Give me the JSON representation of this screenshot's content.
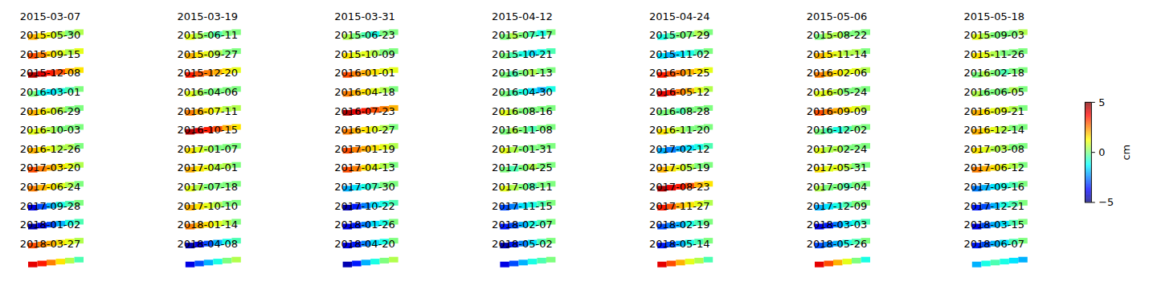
{
  "chart_data": {
    "type": "heatmap",
    "panels": [
      {
        "title": "2015-03-07",
        "cells": [
          2,
          1.5,
          1,
          0.5,
          0,
          0.5
        ]
      },
      {
        "title": "2015-03-19",
        "cells": [
          1,
          0.5,
          0,
          -0.5,
          0,
          0
        ]
      },
      {
        "title": "2015-03-31",
        "cells": [
          0.5,
          0,
          -0.5,
          -1,
          0,
          0
        ]
      },
      {
        "title": "2015-04-12",
        "cells": [
          0,
          0.5,
          0,
          -0.5,
          -1,
          0
        ]
      },
      {
        "title": "2015-04-24",
        "cells": [
          -1,
          -0.5,
          0,
          0,
          0.5,
          0
        ]
      },
      {
        "title": "2015-05-06",
        "cells": [
          0,
          0.5,
          0.5,
          0,
          0,
          0
        ]
      },
      {
        "title": "2015-05-18",
        "cells": [
          1,
          0.5,
          0,
          0,
          0,
          0.5
        ]
      },
      {
        "title": "2015-05-30",
        "cells": [
          3,
          2.5,
          1.5,
          1,
          0.5,
          1
        ]
      },
      {
        "title": "2015-06-11",
        "cells": [
          2,
          1.5,
          1,
          0.5,
          0,
          0
        ]
      },
      {
        "title": "2015-06-23",
        "cells": [
          1.5,
          1,
          1,
          0.5,
          0,
          0
        ]
      },
      {
        "title": "2015-07-17",
        "cells": [
          0,
          -0.5,
          -1,
          -1.5,
          -1,
          -0.5
        ]
      },
      {
        "title": "2015-07-29",
        "cells": [
          -1.5,
          -2,
          -1.5,
          -1,
          -0.5,
          0
        ]
      },
      {
        "title": "2015-08-22",
        "cells": [
          2,
          1.5,
          1,
          0.5,
          0.5,
          0
        ]
      },
      {
        "title": "2015-09-03",
        "cells": [
          1.5,
          1,
          0.5,
          0,
          0,
          0
        ]
      },
      {
        "title": "2015-09-15",
        "cells": [
          4.5,
          4,
          3.5,
          3,
          2,
          1.5
        ]
      },
      {
        "title": "2015-09-27",
        "cells": [
          3.5,
          3,
          2.5,
          2,
          1.5,
          1
        ]
      },
      {
        "title": "2015-10-09",
        "cells": [
          3,
          2.5,
          2,
          1.5,
          1,
          1
        ]
      },
      {
        "title": "2015-10-21",
        "cells": [
          0,
          -0.5,
          0,
          0.5,
          0,
          0
        ]
      },
      {
        "title": "2015-11-02",
        "cells": [
          3.5,
          3,
          2.5,
          2,
          1.5,
          1
        ]
      },
      {
        "title": "2015-11-14",
        "cells": [
          2.5,
          2,
          1.5,
          1,
          1,
          0.5
        ]
      },
      {
        "title": "2015-11-26",
        "cells": [
          0,
          0.5,
          0,
          -0.5,
          0,
          0
        ]
      },
      {
        "title": "2015-12-08",
        "cells": [
          0,
          -1,
          -1.5,
          -1,
          -0.5,
          0
        ]
      },
      {
        "title": "2015-12-20",
        "cells": [
          1,
          0.5,
          0,
          0,
          0,
          0
        ]
      },
      {
        "title": "2016-01-01",
        "cells": [
          2.5,
          2,
          1.5,
          1,
          0.5,
          0
        ]
      },
      {
        "title": "2016-01-13",
        "cells": [
          0,
          -0.5,
          -1,
          -1.5,
          -2,
          -1
        ]
      },
      {
        "title": "2016-01-25",
        "cells": [
          4,
          3.5,
          2.5,
          2,
          1,
          0.5
        ]
      },
      {
        "title": "2016-02-06",
        "cells": [
          1,
          1,
          0.5,
          0,
          0,
          0
        ]
      },
      {
        "title": "2016-02-18",
        "cells": [
          0.5,
          0,
          0,
          0,
          0.5,
          0
        ]
      },
      {
        "title": "2016-03-01",
        "cells": [
          2,
          1.5,
          1,
          0.5,
          0,
          0
        ]
      },
      {
        "title": "2016-04-06",
        "cells": [
          2.5,
          2,
          1.5,
          1,
          0.5,
          0.5
        ]
      },
      {
        "title": "2016-04-18",
        "cells": [
          4.5,
          4,
          3.5,
          3,
          2.5,
          2
        ]
      },
      {
        "title": "2016-04-30",
        "cells": [
          1,
          0.5,
          0,
          0,
          0,
          0
        ]
      },
      {
        "title": "2016-05-12",
        "cells": [
          0,
          0,
          -0.5,
          0,
          0,
          0
        ]
      },
      {
        "title": "2016-05-24",
        "cells": [
          3,
          2.5,
          2,
          1.5,
          1,
          0.5
        ]
      },
      {
        "title": "2016-06-05",
        "cells": [
          2,
          1.5,
          1,
          1,
          0.5,
          0
        ]
      },
      {
        "title": "2016-06-29",
        "cells": [
          1,
          1,
          0.5,
          0,
          0,
          0
        ]
      },
      {
        "title": "2016-07-11",
        "cells": [
          4.5,
          4,
          3.5,
          3,
          2,
          1.5
        ]
      },
      {
        "title": "2016-07-23",
        "cells": [
          2.5,
          2,
          1.5,
          1,
          0.5,
          0
        ]
      },
      {
        "title": "2016-08-16",
        "cells": [
          0,
          0.5,
          0,
          -0.5,
          0,
          0
        ]
      },
      {
        "title": "2016-08-28",
        "cells": [
          1.5,
          1,
          0.5,
          0,
          0,
          0
        ]
      },
      {
        "title": "2016-09-09",
        "cells": [
          0,
          -0.5,
          -1,
          -0.5,
          0,
          0
        ]
      },
      {
        "title": "2016-09-21",
        "cells": [
          2,
          1.5,
          1,
          0.5,
          0,
          0
        ]
      },
      {
        "title": "2016-10-03",
        "cells": [
          2,
          1.5,
          1,
          0.5,
          0.5,
          0
        ]
      },
      {
        "title": "2016-10-15",
        "cells": [
          1.5,
          1,
          0.5,
          0,
          0,
          0
        ]
      },
      {
        "title": "2016-10-27",
        "cells": [
          3,
          2.5,
          2,
          1.5,
          1,
          0.5
        ]
      },
      {
        "title": "2016-11-08",
        "cells": [
          1,
          0.5,
          0,
          0,
          0,
          0
        ]
      },
      {
        "title": "2016-11-20",
        "cells": [
          -2,
          -2.5,
          -2,
          -1.5,
          -1,
          -0.5
        ]
      },
      {
        "title": "2016-12-02",
        "cells": [
          1,
          0.5,
          0.5,
          0,
          0,
          0
        ]
      },
      {
        "title": "2016-12-14",
        "cells": [
          1.5,
          1,
          0.5,
          0.5,
          0,
          0
        ]
      },
      {
        "title": "2016-12-26",
        "cells": [
          3,
          2.5,
          2,
          1.5,
          1,
          0.5
        ]
      },
      {
        "title": "2017-01-07",
        "cells": [
          2,
          1.5,
          1,
          0.5,
          0.5,
          0
        ]
      },
      {
        "title": "2017-01-19",
        "cells": [
          3,
          2.5,
          1.5,
          1,
          0.5,
          0
        ]
      },
      {
        "title": "2017-01-31",
        "cells": [
          0,
          -0.5,
          0,
          0.5,
          0,
          0
        ]
      },
      {
        "title": "2017-02-12",
        "cells": [
          2,
          1.5,
          1,
          0.5,
          0,
          0
        ]
      },
      {
        "title": "2017-02-24",
        "cells": [
          1.5,
          1,
          1,
          0.5,
          0,
          0
        ]
      },
      {
        "title": "2017-03-08",
        "cells": [
          2.5,
          2,
          1.5,
          1,
          0.5,
          0
        ]
      },
      {
        "title": "2017-03-20",
        "cells": [
          2.5,
          2,
          1.5,
          1,
          0.5,
          0
        ]
      },
      {
        "title": "2017-04-01",
        "cells": [
          1,
          0.5,
          0,
          0,
          0,
          0
        ]
      },
      {
        "title": "2017-04-13",
        "cells": [
          -2,
          -1.5,
          -1,
          -0.5,
          0,
          0
        ]
      },
      {
        "title": "2017-04-25",
        "cells": [
          1,
          0.5,
          0,
          -0.5,
          0,
          0
        ]
      },
      {
        "title": "2017-05-19",
        "cells": [
          4.5,
          4,
          3.5,
          3,
          2,
          1.5
        ]
      },
      {
        "title": "2017-05-31",
        "cells": [
          0.5,
          0,
          0,
          -0.5,
          0,
          0
        ]
      },
      {
        "title": "2017-06-12",
        "cells": [
          -2.5,
          -2,
          -1.5,
          -1,
          -0.5,
          0
        ]
      },
      {
        "title": "2017-06-24",
        "cells": [
          -4,
          -3,
          -2,
          -1,
          -0.5,
          0
        ]
      },
      {
        "title": "2017-07-18",
        "cells": [
          2,
          1.5,
          1,
          0.5,
          0,
          0
        ]
      },
      {
        "title": "2017-07-30",
        "cells": [
          -4.5,
          -3.5,
          -2.5,
          -1.5,
          -1,
          -0.5
        ]
      },
      {
        "title": "2017-08-11",
        "cells": [
          -3,
          -2.5,
          -1.5,
          -1,
          -0.5,
          0
        ]
      },
      {
        "title": "2017-08-23",
        "cells": [
          3.5,
          3,
          2,
          1.5,
          1,
          0.5
        ]
      },
      {
        "title": "2017-09-04",
        "cells": [
          -2,
          -1.5,
          -1,
          -0.5,
          0,
          0
        ]
      },
      {
        "title": "2017-09-16",
        "cells": [
          -3.5,
          -3,
          -2,
          -1,
          -0.5,
          0
        ]
      },
      {
        "title": "2017-09-28",
        "cells": [
          -4.5,
          -4,
          -3,
          -2,
          -1,
          -0.5
        ]
      },
      {
        "title": "2017-10-10",
        "cells": [
          2.5,
          2,
          1.5,
          1,
          0.5,
          0
        ]
      },
      {
        "title": "2017-10-22",
        "cells": [
          -4,
          -3.5,
          -2.5,
          -1.5,
          -1,
          0
        ]
      },
      {
        "title": "2017-11-15",
        "cells": [
          -3.5,
          -3,
          -2,
          -1,
          -0.5,
          0
        ]
      },
      {
        "title": "2017-11-27",
        "cells": [
          -3,
          -2.5,
          -2,
          -1,
          -0.5,
          0
        ]
      },
      {
        "title": "2017-12-09",
        "cells": [
          -4,
          -3.5,
          -2.5,
          -1.5,
          -1,
          -0.5
        ]
      },
      {
        "title": "2017-12-21",
        "cells": [
          -4,
          -3,
          -2,
          -1.5,
          -0.5,
          0
        ]
      },
      {
        "title": "2018-01-02",
        "cells": [
          3,
          2.5,
          2,
          1.5,
          1,
          0.5
        ]
      },
      {
        "title": "2018-01-14",
        "cells": [
          -4.5,
          -4,
          -3,
          -2,
          -1,
          -0.5
        ]
      },
      {
        "title": "2018-01-26",
        "cells": [
          -4,
          -3.5,
          -2.5,
          -1.5,
          -1,
          0
        ]
      },
      {
        "title": "2018-02-07",
        "cells": [
          -4.5,
          -3.5,
          -2.5,
          -1.5,
          -0.5,
          0
        ]
      },
      {
        "title": "2018-02-19",
        "cells": [
          -3.5,
          -3,
          -2,
          -1,
          -0.5,
          0
        ]
      },
      {
        "title": "2018-03-03",
        "cells": [
          -3,
          -2.5,
          -2,
          -1,
          -0.5,
          0
        ]
      },
      {
        "title": "2018-03-15",
        "cells": [
          -3.5,
          -3,
          -2,
          -1.5,
          -0.5,
          0
        ]
      },
      {
        "title": "2018-03-27",
        "cells": [
          4,
          3.5,
          2.5,
          1.5,
          0.5,
          -0.5
        ]
      },
      {
        "title": "2018-04-08",
        "cells": [
          -4,
          -3,
          -2,
          -1,
          0,
          0.5
        ]
      },
      {
        "title": "2018-04-20",
        "cells": [
          -4.5,
          -3.5,
          -2,
          -1,
          0,
          0.5
        ]
      },
      {
        "title": "2018-05-02",
        "cells": [
          -4,
          -3,
          -2,
          -1,
          -0.5,
          0
        ]
      },
      {
        "title": "2018-05-14",
        "cells": [
          4,
          3,
          2,
          1,
          0.5,
          -0.5
        ]
      },
      {
        "title": "2018-05-26",
        "cells": [
          4,
          3,
          2,
          1,
          0,
          -1
        ]
      },
      {
        "title": "2018-06-07",
        "cells": [
          -2,
          -1,
          -0.5,
          -1,
          -1.5,
          -2
        ]
      }
    ],
    "colorbar": {
      "label": "cm",
      "range": [
        -5,
        5
      ],
      "ticks": [
        {
          "value": -5,
          "label": "−5"
        },
        0,
        5
      ]
    }
  }
}
